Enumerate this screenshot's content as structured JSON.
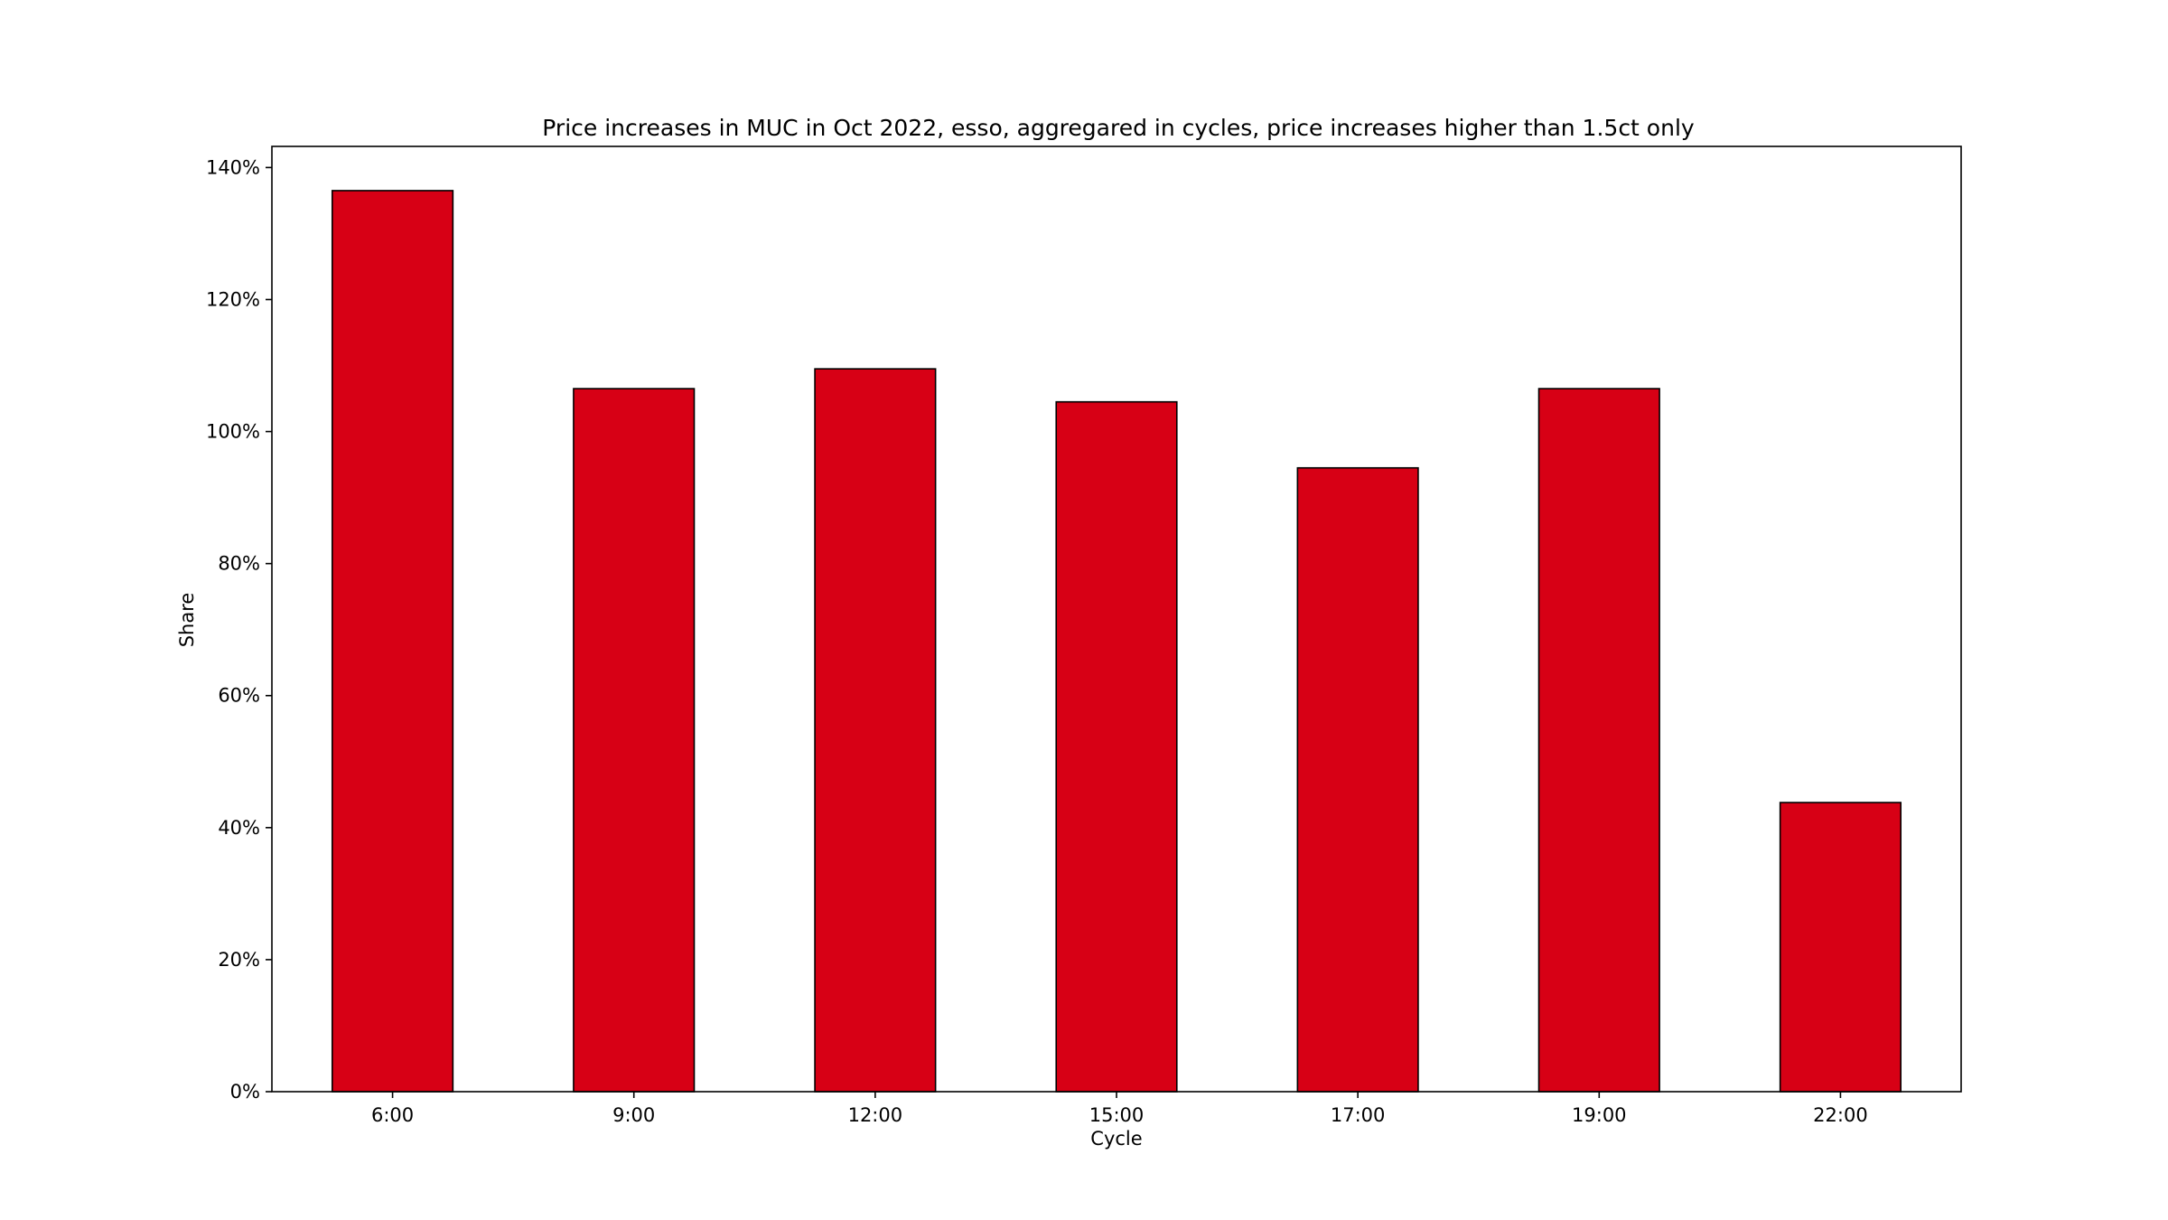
{
  "chart_data": {
    "type": "bar",
    "title": "Price increases in MUC in Oct 2022, esso, aggregared in cycles, price increases higher than 1.5ct only",
    "xlabel": "Cycle",
    "ylabel": "Share",
    "categories": [
      "6:00",
      "9:00",
      "12:00",
      "15:00",
      "17:00",
      "19:00",
      "22:00"
    ],
    "values": [
      136.5,
      106.5,
      109.5,
      104.5,
      94.5,
      106.5,
      43.8
    ],
    "value_unit": "%",
    "ylim": [
      0,
      143.2
    ],
    "yticks": [
      0,
      20,
      40,
      60,
      80,
      100,
      120,
      140
    ],
    "ytick_labels": [
      "0%",
      "20%",
      "40%",
      "60%",
      "80%",
      "100%",
      "120%",
      "140%"
    ],
    "grid": false,
    "legend": "none",
    "bar_color": "#d70015",
    "bar_edge_color": "#000000"
  }
}
